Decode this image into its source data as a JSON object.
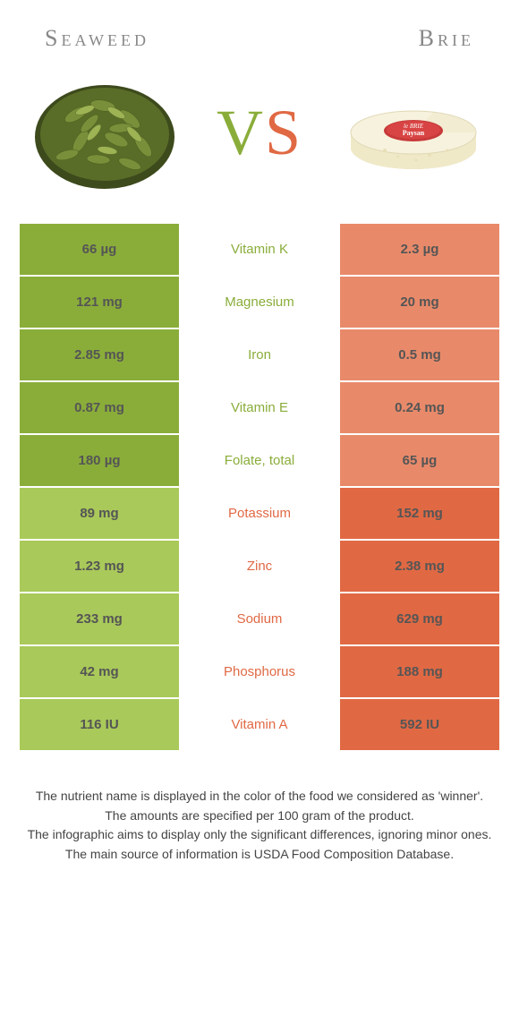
{
  "header": {
    "left": "Seaweed",
    "right": "Brie"
  },
  "vs": {
    "v": "V",
    "s": "S"
  },
  "colors": {
    "green": "#8aad3a",
    "green_light": "#a9c95a",
    "orange": "#e06944",
    "orange_light": "#e88a6a",
    "white": "#ffffff",
    "text": "#555555"
  },
  "rows": [
    {
      "left": "66 µg",
      "label": "Vitamin K",
      "right": "2.3 µg",
      "winner": "left"
    },
    {
      "left": "121 mg",
      "label": "Magnesium",
      "right": "20 mg",
      "winner": "left"
    },
    {
      "left": "2.85 mg",
      "label": "Iron",
      "right": "0.5 mg",
      "winner": "left"
    },
    {
      "left": "0.87 mg",
      "label": "Vitamin E",
      "right": "0.24 mg",
      "winner": "left"
    },
    {
      "left": "180 µg",
      "label": "Folate, total",
      "right": "65 µg",
      "winner": "left"
    },
    {
      "left": "89 mg",
      "label": "Potassium",
      "right": "152 mg",
      "winner": "right"
    },
    {
      "left": "1.23 mg",
      "label": "Zinc",
      "right": "2.38 mg",
      "winner": "right"
    },
    {
      "left": "233 mg",
      "label": "Sodium",
      "right": "629 mg",
      "winner": "right"
    },
    {
      "left": "42 mg",
      "label": "Phosphorus",
      "right": "188 mg",
      "winner": "right"
    },
    {
      "left": "116 IU",
      "label": "Vitamin A",
      "right": "592 IU",
      "winner": "right"
    }
  ],
  "footer": {
    "l1": "The nutrient name is displayed in the color of the food we considered as 'winner'.",
    "l2": "The amounts are specified per 100 gram of the product.",
    "l3": "The infographic aims to display only the significant differences, ignoring minor ones.",
    "l4": "The main source of information is USDA Food Composition Database."
  }
}
